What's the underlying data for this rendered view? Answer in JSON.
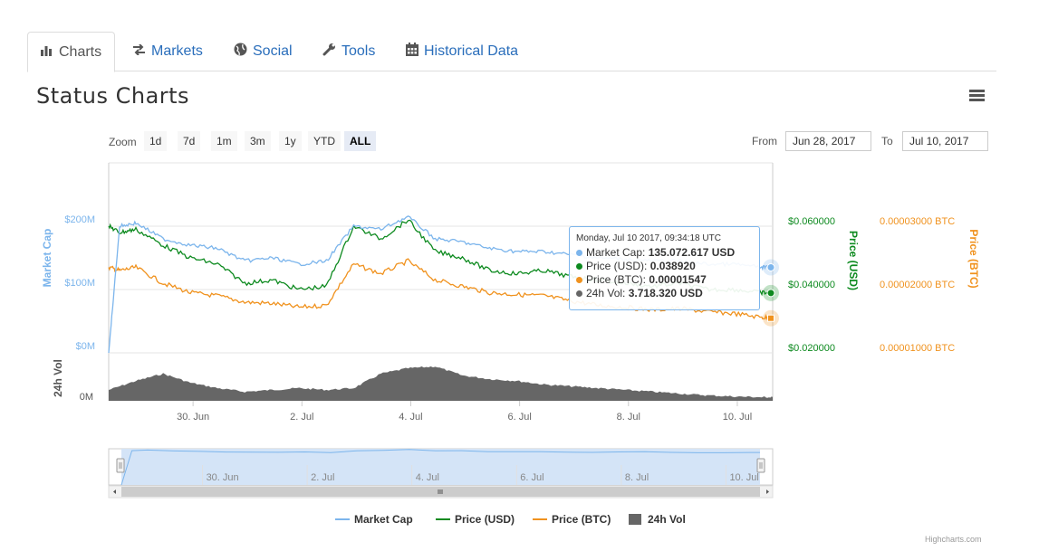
{
  "tabs": [
    {
      "label": "Charts",
      "icon": "bar-chart-icon"
    },
    {
      "label": "Markets",
      "icon": "exchange-icon"
    },
    {
      "label": "Social",
      "icon": "globe-icon"
    },
    {
      "label": "Tools",
      "icon": "wrench-icon"
    },
    {
      "label": "Historical Data",
      "icon": "calendar-icon"
    }
  ],
  "title": "Status Charts",
  "zoom": {
    "label": "Zoom",
    "buttons": [
      "1d",
      "7d",
      "1m",
      "3m",
      "1y",
      "YTD",
      "ALL"
    ],
    "selected": "ALL"
  },
  "range": {
    "from_label": "From",
    "from_value": "Jun 28, 2017",
    "to_label": "To",
    "to_value": "Jul 10, 2017"
  },
  "tooltip": {
    "header": "Monday, Jul 10 2017, 09:34:18 UTC",
    "rows": [
      {
        "label": "Market Cap",
        "value": "135.072.617 USD",
        "color": "#7cb5ec"
      },
      {
        "label": "Price (USD)",
        "value": "0.038920",
        "color": "#0d8a1f"
      },
      {
        "label": "Price (BTC)",
        "value": "0.00001547",
        "color": "#f0921e"
      },
      {
        "label": "24h Vol",
        "value": "3.718.320 USD",
        "color": "#666666"
      }
    ]
  },
  "legend": [
    {
      "label": "Market Cap",
      "color": "#7cb5ec",
      "kind": "line"
    },
    {
      "label": "Price (USD)",
      "color": "#0d8a1f",
      "kind": "line"
    },
    {
      "label": "Price (BTC)",
      "color": "#f0921e",
      "kind": "line"
    },
    {
      "label": "24h Vol",
      "color": "#666666",
      "kind": "box"
    }
  ],
  "credits": "Highcharts.com",
  "chart_data": {
    "type": "line",
    "x_range": [
      "2017-06-28",
      "2017-07-10"
    ],
    "x_ticks": [
      "30. Jun",
      "2. Jul",
      "4. Jul",
      "6. Jul",
      "8. Jul",
      "10. Jul"
    ],
    "navigator_ticks": [
      "30. Jun",
      "2. Jul",
      "4. Jul",
      "6. Jul",
      "8. Jul",
      "10. Jul"
    ],
    "axes": {
      "market_cap": {
        "title": "Market Cap",
        "ticks": [
          "$0M",
          "$100M",
          "$200M"
        ],
        "color": "#7cb5ec"
      },
      "price_usd": {
        "title": "Price (USD)",
        "ticks": [
          "$0.020000",
          "$0.040000",
          "$0.060000"
        ],
        "color": "#0d8a1f"
      },
      "price_btc": {
        "title": "Price (BTC)",
        "ticks": [
          "0.00001000 BTC",
          "0.00002000 BTC",
          "0.00003000 BTC"
        ],
        "color": "#f0921e"
      },
      "volume": {
        "title": "24h Vol",
        "ticks": [
          "0M"
        ],
        "color": "#555555"
      }
    },
    "series": [
      {
        "name": "Market Cap",
        "color": "#7cb5ec",
        "x": [
          0,
          0.2,
          0.5,
          1.0,
          1.5,
          2.0,
          2.5,
          3.0,
          3.5,
          4.0,
          4.5,
          5.0,
          5.5,
          6.0,
          6.5,
          7.0,
          7.5,
          8.0,
          8.5,
          9.0,
          9.5,
          10.0,
          10.5,
          11.0,
          11.5,
          12.0,
          12.2
        ],
        "values": [
          0,
          200,
          205,
          180,
          170,
          165,
          145,
          150,
          140,
          145,
          200,
          195,
          215,
          180,
          175,
          165,
          160,
          160,
          155,
          150,
          148,
          145,
          145,
          140,
          140,
          135,
          135
        ]
      },
      {
        "name": "Price (USD)",
        "color": "#0d8a1f",
        "x": [
          0,
          0.2,
          0.5,
          1.0,
          1.5,
          2.0,
          2.5,
          3.0,
          3.5,
          4.0,
          4.5,
          5.0,
          5.5,
          6.0,
          6.5,
          7.0,
          7.5,
          8.0,
          8.5,
          9.0,
          9.5,
          10.0,
          10.5,
          11.0,
          11.5,
          12.0,
          12.2
        ],
        "values": [
          0.06,
          0.058,
          0.059,
          0.054,
          0.05,
          0.048,
          0.042,
          0.043,
          0.04,
          0.041,
          0.06,
          0.056,
          0.062,
          0.052,
          0.05,
          0.046,
          0.045,
          0.046,
          0.044,
          0.043,
          0.042,
          0.041,
          0.042,
          0.04,
          0.04,
          0.039,
          0.0389
        ]
      },
      {
        "name": "Price (BTC)",
        "color": "#f0921e",
        "x": [
          0,
          0.2,
          0.5,
          1.0,
          1.5,
          2.0,
          2.5,
          3.0,
          3.5,
          4.0,
          4.5,
          5.0,
          5.5,
          6.0,
          6.5,
          7.0,
          7.5,
          8.0,
          8.5,
          9.0,
          9.5,
          10.0,
          10.5,
          11.0,
          11.5,
          12.0,
          12.2
        ],
        "values": [
          2.35e-05,
          2.3e-05,
          2.35e-05,
          2.1e-05,
          1.95e-05,
          1.9e-05,
          1.8e-05,
          1.78e-05,
          1.72e-05,
          1.75e-05,
          2.4e-05,
          2.25e-05,
          2.45e-05,
          2.15e-05,
          2.05e-05,
          1.95e-05,
          1.92e-05,
          1.9e-05,
          1.82e-05,
          1.75e-05,
          1.72e-05,
          1.68e-05,
          1.7e-05,
          1.65e-05,
          1.62e-05,
          1.56e-05,
          1.547e-05
        ]
      },
      {
        "name": "24h Vol",
        "color": "#666666",
        "x": [
          0,
          0.5,
          1.0,
          1.5,
          2.0,
          2.5,
          3.0,
          3.5,
          4.0,
          4.5,
          5.0,
          5.5,
          6.0,
          6.5,
          7.0,
          7.5,
          8.0,
          8.5,
          9.0,
          9.5,
          10.0,
          10.5,
          11.0,
          11.5,
          12.0,
          12.2
        ],
        "values": [
          0.3,
          0.55,
          0.75,
          0.5,
          0.35,
          0.25,
          0.3,
          0.35,
          0.3,
          0.35,
          0.75,
          0.9,
          0.95,
          0.7,
          0.6,
          0.55,
          0.45,
          0.4,
          0.35,
          0.3,
          0.25,
          0.2,
          0.15,
          0.12,
          0.1,
          0.1
        ]
      }
    ],
    "grid": true,
    "legend_position": "bottom-center"
  }
}
